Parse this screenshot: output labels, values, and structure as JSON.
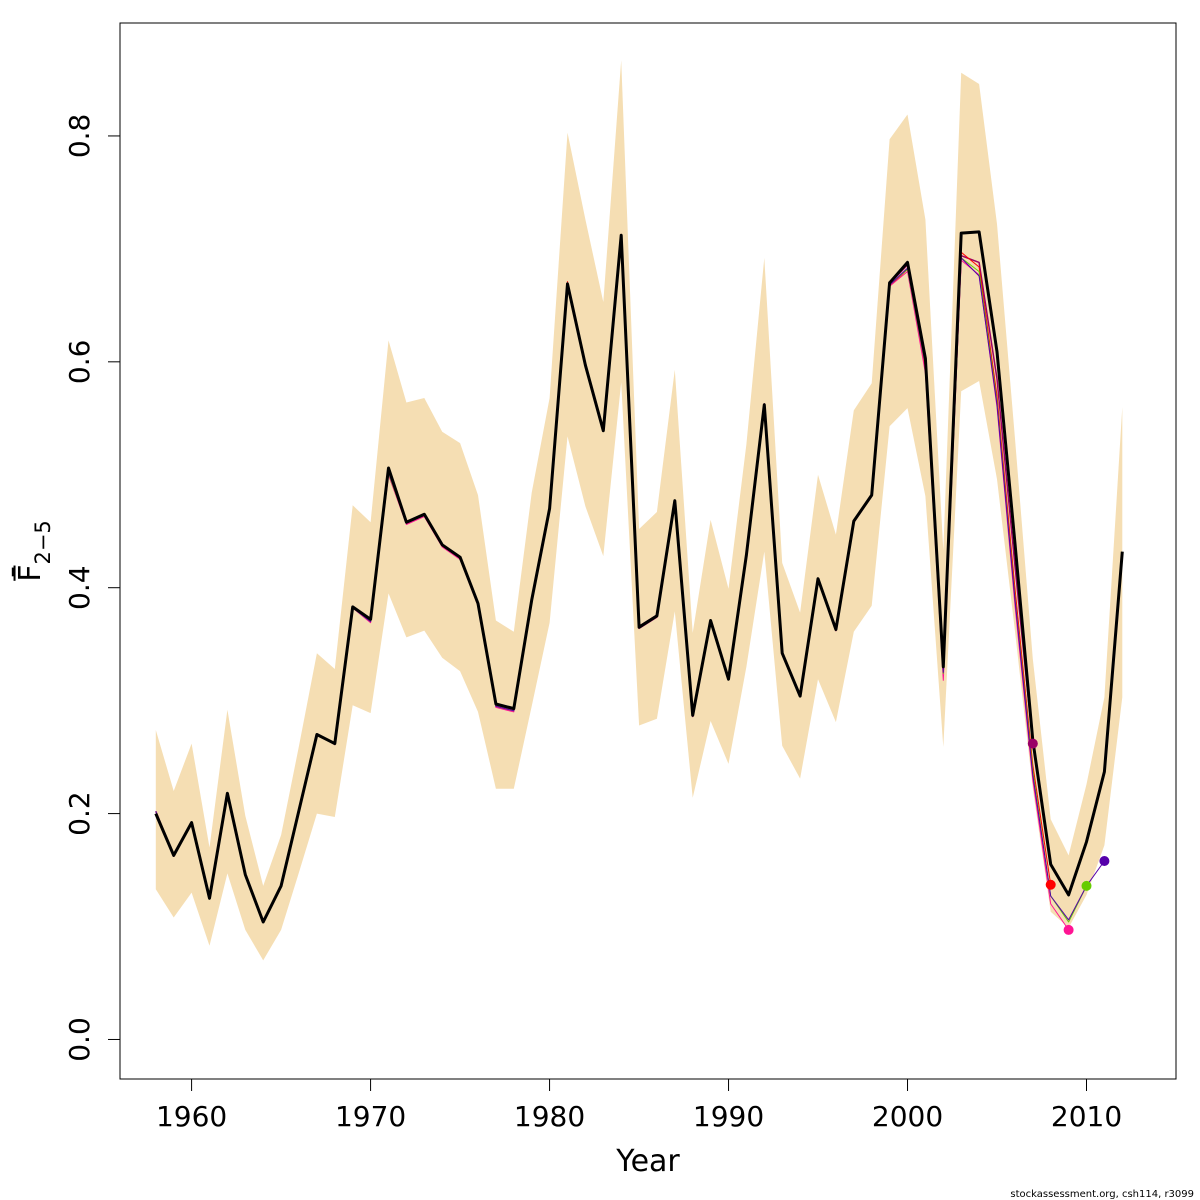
{
  "chart_data": {
    "type": "line",
    "title": "",
    "xlabel": "Year",
    "ylabel": "F̄",
    "ylabel_subscript": "2−5",
    "xlim": [
      1956,
      2015
    ],
    "ylim": [
      -0.035,
      0.9
    ],
    "x_ticks": [
      1960,
      1970,
      1980,
      1990,
      2000,
      2010
    ],
    "x_tick_labels": [
      "1960",
      "1970",
      "1980",
      "1990",
      "2000",
      "2010"
    ],
    "y_ticks": [
      0.0,
      0.2,
      0.4,
      0.6,
      0.8
    ],
    "y_tick_labels": [
      "0.0",
      "0.2",
      "0.4",
      "0.6",
      "0.8"
    ],
    "grid": false,
    "footer_text": "stockassessment.org, csh114, r3099",
    "years": [
      1958,
      1959,
      1960,
      1961,
      1962,
      1963,
      1964,
      1965,
      1966,
      1967,
      1968,
      1969,
      1970,
      1971,
      1972,
      1973,
      1974,
      1975,
      1976,
      1977,
      1978,
      1979,
      1980,
      1981,
      1982,
      1983,
      1984,
      1985,
      1986,
      1987,
      1988,
      1989,
      1990,
      1991,
      1992,
      1993,
      1994,
      1995,
      1996,
      1997,
      1998,
      1999,
      2000,
      2001,
      2002,
      2003,
      2004,
      2005,
      2006,
      2007,
      2008,
      2009,
      2010,
      2011,
      2012
    ],
    "band": {
      "name": "confidence-band",
      "color": "#f5deb3",
      "lower": [
        0.133,
        0.108,
        0.13,
        0.083,
        0.147,
        0.097,
        0.07,
        0.097,
        0.148,
        0.2,
        0.197,
        0.296,
        0.289,
        0.395,
        0.356,
        0.362,
        0.338,
        0.326,
        0.29,
        0.222,
        0.222,
        0.295,
        0.369,
        0.534,
        0.472,
        0.428,
        0.582,
        0.278,
        0.284,
        0.379,
        0.214,
        0.282,
        0.244,
        0.33,
        0.432,
        0.26,
        0.231,
        0.319,
        0.281,
        0.361,
        0.384,
        0.543,
        0.559,
        0.481,
        0.259,
        0.574,
        0.583,
        0.496,
        0.362,
        0.222,
        0.113,
        0.099,
        0.128,
        0.172,
        0.303
      ],
      "upper": [
        0.274,
        0.22,
        0.262,
        0.17,
        0.292,
        0.198,
        0.136,
        0.181,
        0.26,
        0.342,
        0.328,
        0.473,
        0.458,
        0.619,
        0.564,
        0.568,
        0.538,
        0.528,
        0.482,
        0.371,
        0.361,
        0.484,
        0.568,
        0.803,
        0.726,
        0.653,
        0.867,
        0.452,
        0.467,
        0.593,
        0.36,
        0.46,
        0.399,
        0.527,
        0.692,
        0.422,
        0.378,
        0.5,
        0.447,
        0.557,
        0.581,
        0.797,
        0.819,
        0.726,
        0.433,
        0.856,
        0.846,
        0.722,
        0.533,
        0.337,
        0.195,
        0.163,
        0.226,
        0.303,
        0.56
      ]
    },
    "series": [
      {
        "name": "current-assessment",
        "color": "#000000",
        "width": 3,
        "x_start": 1958,
        "values": [
          0.2,
          0.163,
          0.192,
          0.125,
          0.218,
          0.146,
          0.104,
          0.136,
          0.203,
          0.27,
          0.262,
          0.383,
          0.372,
          0.506,
          0.458,
          0.465,
          0.438,
          0.427,
          0.386,
          0.297,
          0.293,
          0.389,
          0.47,
          0.669,
          0.597,
          0.539,
          0.712,
          0.365,
          0.375,
          0.477,
          0.287,
          0.371,
          0.319,
          0.429,
          0.562,
          0.342,
          0.304,
          0.408,
          0.363,
          0.459,
          0.482,
          0.67,
          0.688,
          0.603,
          0.33,
          0.714,
          0.715,
          0.609,
          0.44,
          0.265,
          0.155,
          0.128,
          0.175,
          0.237,
          0.432
        ]
      },
      {
        "name": "retro-2007",
        "color": "#990066",
        "width": 1.5,
        "x_start": 1958,
        "values": [
          0.202,
          0.163,
          0.192,
          0.125,
          0.218,
          0.146,
          0.104,
          0.136,
          0.203,
          0.27,
          0.262,
          0.383,
          0.371,
          0.504,
          0.457,
          0.464,
          0.437,
          0.426,
          0.385,
          0.296,
          0.292,
          0.388,
          0.469,
          0.669,
          0.597,
          0.54,
          0.712,
          0.364,
          0.374,
          0.476,
          0.286,
          0.37,
          0.319,
          0.428,
          0.562,
          0.341,
          0.304,
          0.407,
          0.362,
          0.458,
          0.481,
          0.669,
          0.686,
          0.601,
          0.328,
          0.694,
          0.688,
          0.585,
          0.42,
          0.262
        ]
      },
      {
        "name": "retro-2008",
        "color": "#ff0000",
        "width": 1,
        "x_start": 1958,
        "values": [
          0.202,
          0.162,
          0.192,
          0.125,
          0.218,
          0.146,
          0.104,
          0.136,
          0.203,
          0.27,
          0.262,
          0.382,
          0.37,
          0.5,
          0.457,
          0.464,
          0.437,
          0.426,
          0.385,
          0.295,
          0.291,
          0.388,
          0.469,
          0.671,
          0.598,
          0.54,
          0.713,
          0.366,
          0.376,
          0.477,
          0.287,
          0.371,
          0.319,
          0.429,
          0.563,
          0.342,
          0.304,
          0.408,
          0.363,
          0.458,
          0.482,
          0.667,
          0.682,
          0.594,
          0.322,
          0.697,
          0.684,
          0.57,
          0.4,
          0.243,
          0.137
        ]
      },
      {
        "name": "retro-2009",
        "color": "#ff1493",
        "width": 1,
        "x_start": 1958,
        "values": [
          0.202,
          0.162,
          0.192,
          0.125,
          0.218,
          0.146,
          0.104,
          0.136,
          0.203,
          0.27,
          0.261,
          0.382,
          0.369,
          0.5,
          0.456,
          0.463,
          0.436,
          0.425,
          0.384,
          0.294,
          0.29,
          0.387,
          0.469,
          0.67,
          0.597,
          0.54,
          0.712,
          0.366,
          0.376,
          0.477,
          0.287,
          0.371,
          0.319,
          0.429,
          0.563,
          0.342,
          0.304,
          0.408,
          0.363,
          0.458,
          0.482,
          0.667,
          0.68,
          0.59,
          0.318,
          0.69,
          0.677,
          0.56,
          0.385,
          0.23,
          0.12,
          0.097
        ]
      },
      {
        "name": "retro-2010",
        "color": "#66cc00",
        "width": 1,
        "x_start": 1958,
        "values": [
          0.202,
          0.162,
          0.192,
          0.125,
          0.218,
          0.146,
          0.104,
          0.136,
          0.203,
          0.27,
          0.261,
          0.382,
          0.37,
          0.501,
          0.457,
          0.464,
          0.437,
          0.426,
          0.385,
          0.295,
          0.291,
          0.388,
          0.469,
          0.67,
          0.597,
          0.54,
          0.712,
          0.366,
          0.376,
          0.477,
          0.287,
          0.371,
          0.319,
          0.429,
          0.563,
          0.342,
          0.304,
          0.408,
          0.363,
          0.458,
          0.482,
          0.668,
          0.682,
          0.596,
          0.324,
          0.692,
          0.68,
          0.565,
          0.392,
          0.238,
          0.127,
          0.104,
          0.136
        ]
      },
      {
        "name": "retro-2011",
        "color": "#5500aa",
        "width": 1,
        "x_start": 1958,
        "values": [
          0.202,
          0.162,
          0.192,
          0.125,
          0.218,
          0.146,
          0.104,
          0.136,
          0.203,
          0.27,
          0.261,
          0.382,
          0.37,
          0.502,
          0.457,
          0.464,
          0.437,
          0.426,
          0.385,
          0.295,
          0.291,
          0.388,
          0.469,
          0.67,
          0.597,
          0.54,
          0.712,
          0.366,
          0.376,
          0.477,
          0.287,
          0.371,
          0.319,
          0.429,
          0.563,
          0.342,
          0.304,
          0.408,
          0.363,
          0.458,
          0.482,
          0.668,
          0.683,
          0.597,
          0.325,
          0.692,
          0.676,
          0.562,
          0.39,
          0.234,
          0.127,
          0.106,
          0.136,
          0.158
        ]
      }
    ],
    "markers": [
      {
        "name": "marker-2007",
        "x": 2007,
        "y": 0.262,
        "color": "#990066"
      },
      {
        "name": "marker-2008",
        "x": 2008,
        "y": 0.137,
        "color": "#ff0000"
      },
      {
        "name": "marker-2009",
        "x": 2009,
        "y": 0.097,
        "color": "#ff1493"
      },
      {
        "name": "marker-2010",
        "x": 2010,
        "y": 0.136,
        "color": "#66cc00"
      },
      {
        "name": "marker-2011",
        "x": 2011,
        "y": 0.158,
        "color": "#5500aa"
      }
    ]
  }
}
